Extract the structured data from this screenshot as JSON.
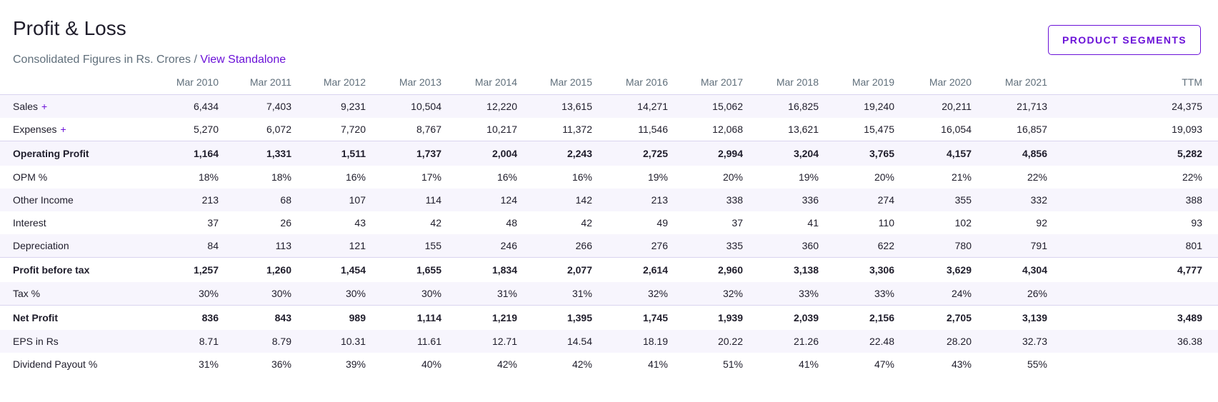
{
  "header": {
    "title": "Profit & Loss",
    "subtitle_prefix": "Consolidated Figures in Rs. Crores / ",
    "subtitle_link": "View Standalone",
    "segments_button": "PRODUCT SEGMENTS"
  },
  "table": {
    "columns": [
      "Mar 2010",
      "Mar 2011",
      "Mar 2012",
      "Mar 2013",
      "Mar 2014",
      "Mar 2015",
      "Mar 2016",
      "Mar 2017",
      "Mar 2018",
      "Mar 2019",
      "Mar 2020",
      "Mar 2021",
      "TTM"
    ],
    "rows": [
      {
        "label": "Sales",
        "expand": "+",
        "values": [
          "6,434",
          "7,403",
          "9,231",
          "10,504",
          "12,220",
          "13,615",
          "14,271",
          "15,062",
          "16,825",
          "19,240",
          "20,211",
          "21,713",
          "24,375"
        ]
      },
      {
        "label": "Expenses",
        "expand": "+",
        "values": [
          "5,270",
          "6,072",
          "7,720",
          "8,767",
          "10,217",
          "11,372",
          "11,546",
          "12,068",
          "13,621",
          "15,475",
          "16,054",
          "16,857",
          "19,093"
        ]
      },
      {
        "label": "Operating Profit",
        "values": [
          "1,164",
          "1,331",
          "1,511",
          "1,737",
          "2,004",
          "2,243",
          "2,725",
          "2,994",
          "3,204",
          "3,765",
          "4,157",
          "4,856",
          "5,282"
        ]
      },
      {
        "label": "OPM %",
        "values": [
          "18%",
          "18%",
          "16%",
          "17%",
          "16%",
          "16%",
          "19%",
          "20%",
          "19%",
          "20%",
          "21%",
          "22%",
          "22%"
        ]
      },
      {
        "label": "Other Income",
        "values": [
          "213",
          "68",
          "107",
          "114",
          "124",
          "142",
          "213",
          "338",
          "336",
          "274",
          "355",
          "332",
          "388"
        ]
      },
      {
        "label": "Interest",
        "values": [
          "37",
          "26",
          "43",
          "42",
          "48",
          "42",
          "49",
          "37",
          "41",
          "110",
          "102",
          "92",
          "93"
        ]
      },
      {
        "label": "Depreciation",
        "values": [
          "84",
          "113",
          "121",
          "155",
          "246",
          "266",
          "276",
          "335",
          "360",
          "622",
          "780",
          "791",
          "801"
        ]
      },
      {
        "label": "Profit before tax",
        "values": [
          "1,257",
          "1,260",
          "1,454",
          "1,655",
          "1,834",
          "2,077",
          "2,614",
          "2,960",
          "3,138",
          "3,306",
          "3,629",
          "4,304",
          "4,777"
        ]
      },
      {
        "label": "Tax %",
        "values": [
          "30%",
          "30%",
          "30%",
          "30%",
          "31%",
          "31%",
          "32%",
          "32%",
          "33%",
          "33%",
          "24%",
          "26%",
          ""
        ]
      },
      {
        "label": "Net Profit",
        "values": [
          "836",
          "843",
          "989",
          "1,114",
          "1,219",
          "1,395",
          "1,745",
          "1,939",
          "2,039",
          "2,156",
          "2,705",
          "3,139",
          "3,489"
        ]
      },
      {
        "label": "EPS in Rs",
        "values": [
          "8.71",
          "8.79",
          "10.31",
          "11.61",
          "12.71",
          "14.54",
          "18.19",
          "20.22",
          "21.26",
          "22.48",
          "28.20",
          "32.73",
          "36.38"
        ]
      },
      {
        "label": "Dividend Payout %",
        "values": [
          "31%",
          "36%",
          "39%",
          "40%",
          "42%",
          "42%",
          "41%",
          "51%",
          "41%",
          "47%",
          "43%",
          "55%",
          ""
        ]
      }
    ]
  }
}
